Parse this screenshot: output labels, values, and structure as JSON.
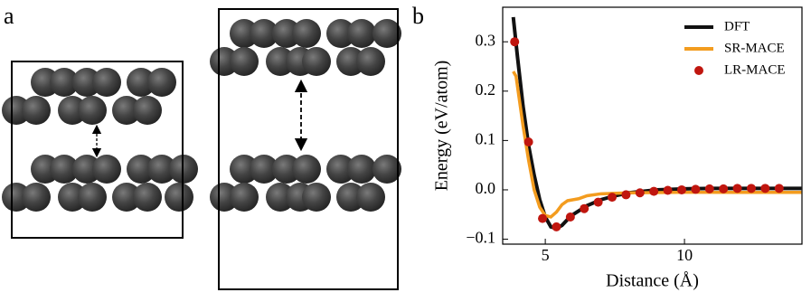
{
  "panels": {
    "a": "a",
    "b": "b"
  },
  "chart_data": {
    "type": "line",
    "xlabel": "Distance (Å)",
    "ylabel": "Energy (eV/atom)",
    "xlim": [
      3.47,
      14.22
    ],
    "ylim": [
      -0.11,
      0.37
    ],
    "xticks": [
      5,
      10
    ],
    "yticks": [
      {
        "value": -0.1,
        "label": "−0.1"
      },
      {
        "value": 0,
        "label": "0.0"
      },
      0.1,
      0.2,
      0.3
    ],
    "legend": "upper right",
    "series": [
      {
        "name": "DFT",
        "color": "#111111",
        "style": "line",
        "x": [
          3.85,
          4.0,
          4.2,
          4.4,
          4.6,
          4.8,
          5.0,
          5.2,
          5.4,
          5.6,
          5.8,
          6.0,
          6.5,
          7.0,
          7.5,
          8.0,
          9,
          10,
          11,
          12,
          13,
          14.2
        ],
        "values": [
          0.35,
          0.27,
          0.17,
          0.09,
          0.03,
          -0.02,
          -0.055,
          -0.075,
          -0.078,
          -0.072,
          -0.06,
          -0.05,
          -0.032,
          -0.02,
          -0.012,
          -0.006,
          0,
          0.002,
          0.003,
          0.003,
          0.003,
          0.003
        ]
      },
      {
        "name": "SR-MACE",
        "color": "#f39c1f",
        "style": "line",
        "x": [
          3.85,
          3.95,
          4.05,
          4.2,
          4.4,
          4.6,
          4.8,
          5.0,
          5.2,
          5.4,
          5.6,
          5.8,
          6.0,
          6.2,
          6.5,
          7,
          8,
          10,
          12,
          14.2
        ],
        "values": [
          0.24,
          0.23,
          0.19,
          0.13,
          0.06,
          0.0,
          -0.035,
          -0.052,
          -0.055,
          -0.045,
          -0.03,
          -0.022,
          -0.02,
          -0.018,
          -0.012,
          -0.008,
          -0.006,
          -0.005,
          -0.005,
          -0.005
        ]
      },
      {
        "name": "LR-MACE",
        "color": "#c0160f",
        "style": "marker",
        "x": [
          3.9,
          4.4,
          4.9,
          5.4,
          5.9,
          6.4,
          6.9,
          7.4,
          7.9,
          8.4,
          8.9,
          9.4,
          9.9,
          10.4,
          10.9,
          11.4,
          11.9,
          12.4,
          12.9,
          13.4
        ],
        "values": [
          0.3,
          0.097,
          -0.058,
          -0.075,
          -0.055,
          -0.038,
          -0.025,
          -0.015,
          -0.01,
          -0.006,
          -0.003,
          -0.001,
          0,
          0.001,
          0.002,
          0.002,
          0.003,
          0.003,
          0.003,
          0.003
        ]
      }
    ]
  }
}
